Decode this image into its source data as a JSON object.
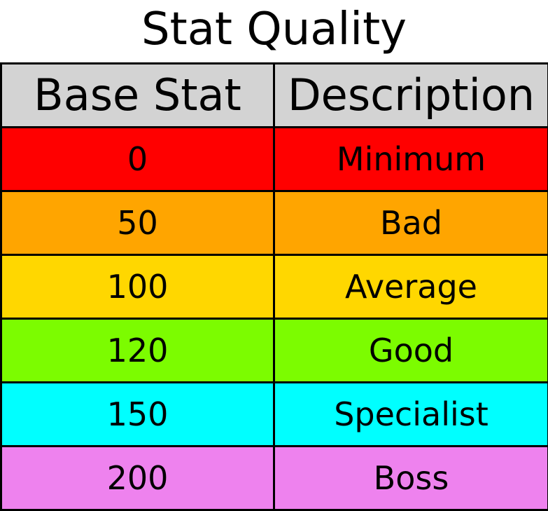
{
  "chart_data": {
    "type": "table",
    "title": "Stat Quality",
    "columns": [
      "Base Stat",
      "Description"
    ],
    "rows": [
      {
        "base_stat": "0",
        "description": "Minimum",
        "color": "#ff0000"
      },
      {
        "base_stat": "50",
        "description": "Bad",
        "color": "#ffa500"
      },
      {
        "base_stat": "100",
        "description": "Average",
        "color": "#ffd700"
      },
      {
        "base_stat": "120",
        "description": "Good",
        "color": "#7cfc00"
      },
      {
        "base_stat": "150",
        "description": "Specialist",
        "color": "#00ffff"
      },
      {
        "base_stat": "200",
        "description": "Boss",
        "color": "#ee82ee"
      }
    ],
    "header_color": "#d3d3d3"
  }
}
